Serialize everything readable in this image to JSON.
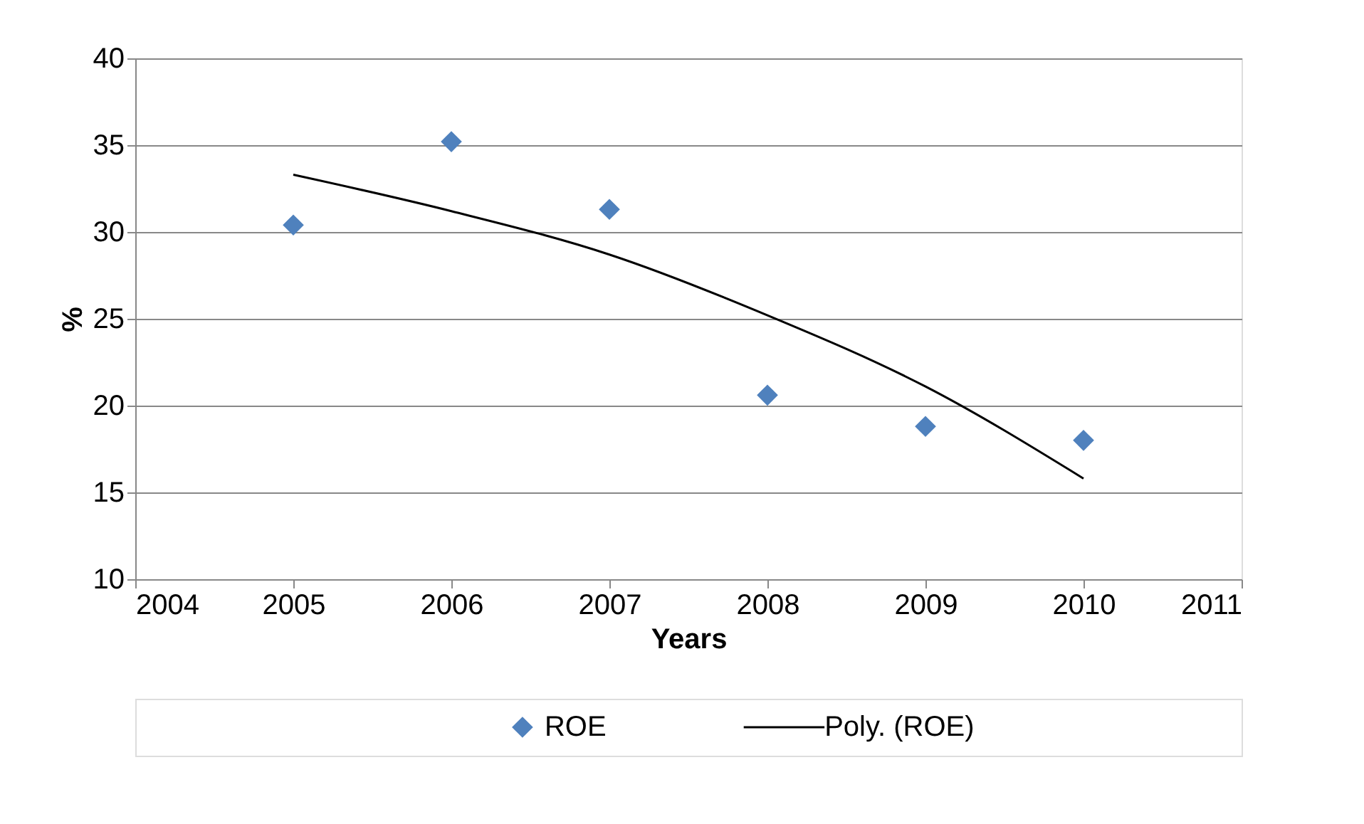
{
  "chart_data": {
    "type": "scatter",
    "xlabel": "Years",
    "ylabel": "%",
    "x": [
      2005,
      2006,
      2007,
      2008,
      2009,
      2010
    ],
    "series": [
      {
        "name": "ROE",
        "color": "#4f81bd",
        "marker": "diamond",
        "values": [
          30.4,
          35.2,
          31.3,
          20.6,
          18.8,
          18.0
        ]
      },
      {
        "name": "Poly. (ROE)",
        "type": "line",
        "color": "#000000",
        "marker": "none",
        "values": [
          33.3,
          31.2,
          28.7,
          25.2,
          21.1,
          15.8
        ]
      }
    ],
    "xlim": [
      2004,
      2011
    ],
    "xticks": [
      2004,
      2005,
      2006,
      2007,
      2008,
      2009,
      2010,
      2011
    ],
    "ylim": [
      10,
      40
    ],
    "yticks": [
      10,
      15,
      20,
      25,
      30,
      35,
      40
    ],
    "grid": "y",
    "legend": "bottom"
  }
}
